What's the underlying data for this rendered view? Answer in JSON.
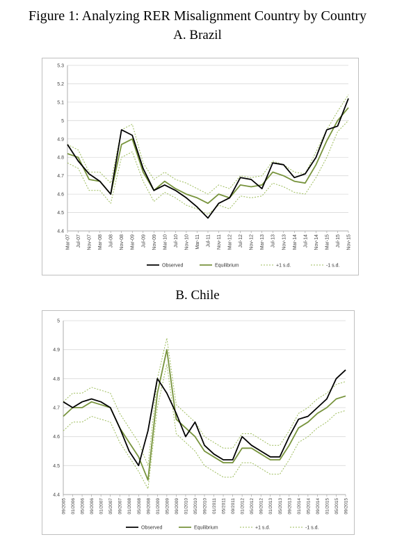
{
  "figure_title": "Figure 1: Analyzing RER Misalignment Country by Country",
  "chart_data": [
    {
      "type": "line",
      "title": "A. Brazil",
      "xlabel": "",
      "ylabel": "",
      "ylim": [
        4.4,
        5.3
      ],
      "yticks": [
        "4.4",
        "4.5",
        "4.6",
        "4.7",
        "4.8",
        "4.9",
        "5",
        "5.1",
        "5.2",
        "5.3"
      ],
      "grid": "horizontal",
      "legend_position": "bottom",
      "x": [
        "Mar-07",
        "Jul-07",
        "Nov-07",
        "Mar-08",
        "Jul-08",
        "Nov-08",
        "Mar-09",
        "Jul-09",
        "Nov-09",
        "Mar-10",
        "Jul-10",
        "Nov-10",
        "Mar-11",
        "Jul-11",
        "Nov-11",
        "Mar-12",
        "Jul-12",
        "Nov-12",
        "Mar-13",
        "Jul-13",
        "Nov-13",
        "Mar-14",
        "Jul-14",
        "Nov-14",
        "Mar-15",
        "Jul-15",
        "Nov-15"
      ],
      "series": [
        {
          "name": "Observed",
          "color": "#000000",
          "width": 1.8,
          "dash": "",
          "values": [
            4.87,
            4.78,
            4.71,
            4.67,
            4.6,
            4.95,
            4.92,
            4.74,
            4.62,
            4.65,
            4.62,
            4.58,
            4.53,
            4.47,
            4.55,
            4.58,
            4.69,
            4.68,
            4.63,
            4.77,
            4.76,
            4.69,
            4.71,
            4.8,
            4.95,
            4.97,
            5.12
          ]
        },
        {
          "name": "Equilibrium",
          "color": "#77933c",
          "width": 1.8,
          "dash": "",
          "values": [
            4.82,
            4.8,
            4.68,
            4.67,
            4.6,
            4.87,
            4.9,
            4.72,
            4.62,
            4.67,
            4.63,
            4.6,
            4.58,
            4.55,
            4.6,
            4.58,
            4.65,
            4.64,
            4.65,
            4.72,
            4.7,
            4.67,
            4.66,
            4.76,
            4.89,
            5.0,
            5.07
          ]
        },
        {
          "name": "+1 s.d.",
          "color": "#9bbb59",
          "width": 1,
          "dash": "2,2",
          "values": [
            4.87,
            4.84,
            4.72,
            4.72,
            4.66,
            4.95,
            4.98,
            4.77,
            4.68,
            4.72,
            4.68,
            4.66,
            4.63,
            4.6,
            4.65,
            4.63,
            4.7,
            4.69,
            4.7,
            4.78,
            4.76,
            4.72,
            4.71,
            4.83,
            4.95,
            5.05,
            5.14
          ]
        },
        {
          "name": "-1 s.d.",
          "color": "#9bbb59",
          "width": 1,
          "dash": "2,2",
          "values": [
            4.77,
            4.74,
            4.62,
            4.62,
            4.55,
            4.8,
            4.83,
            4.67,
            4.56,
            4.61,
            4.58,
            4.54,
            4.52,
            4.49,
            4.54,
            4.52,
            4.59,
            4.58,
            4.59,
            4.66,
            4.64,
            4.61,
            4.6,
            4.69,
            4.8,
            4.94,
            5.0
          ]
        }
      ]
    },
    {
      "type": "line",
      "title": "B. Chile",
      "xlabel": "",
      "ylabel": "",
      "ylim": [
        4.4,
        5.0
      ],
      "yticks": [
        "4.4",
        "4.5",
        "4.6",
        "4.7",
        "4.8",
        "4.9",
        "5"
      ],
      "grid": "horizontal",
      "legend_position": "bottom",
      "x": [
        "09/2005",
        "01/2006",
        "05/2006",
        "09/2006",
        "01/2007",
        "05/2007",
        "09/2007",
        "01/2008",
        "05/2008",
        "09/2008",
        "01/2009",
        "05/2009",
        "09/2009",
        "01/2010",
        "05/2010",
        "09/2010",
        "01/2011",
        "05/2011",
        "09/2011",
        "01/2012",
        "05/2012",
        "09/2012",
        "01/2013",
        "05/2013",
        "09/2013",
        "01/2014",
        "05/2014",
        "09/2014",
        "01/2015",
        "05/2015",
        "09/2015"
      ],
      "series": [
        {
          "name": "Observed",
          "color": "#000000",
          "width": 1.8,
          "dash": "",
          "values": [
            4.72,
            4.7,
            4.72,
            4.73,
            4.72,
            4.7,
            4.63,
            4.55,
            4.5,
            4.62,
            4.8,
            4.75,
            4.68,
            4.6,
            4.65,
            4.57,
            4.54,
            4.52,
            4.52,
            4.6,
            4.57,
            4.55,
            4.53,
            4.53,
            4.6,
            4.66,
            4.67,
            4.7,
            4.73,
            4.8,
            4.83
          ]
        },
        {
          "name": "Equilibrium",
          "color": "#77933c",
          "width": 1.8,
          "dash": "",
          "values": [
            4.67,
            4.7,
            4.7,
            4.72,
            4.71,
            4.7,
            4.63,
            4.58,
            4.53,
            4.45,
            4.75,
            4.9,
            4.66,
            4.63,
            4.6,
            4.55,
            4.53,
            4.51,
            4.51,
            4.56,
            4.56,
            4.54,
            4.52,
            4.52,
            4.57,
            4.63,
            4.65,
            4.68,
            4.7,
            4.73,
            4.74
          ]
        },
        {
          "name": "+1 s.d.",
          "color": "#9bbb59",
          "width": 1,
          "dash": "2,2",
          "values": [
            4.72,
            4.75,
            4.75,
            4.77,
            4.76,
            4.75,
            4.68,
            4.63,
            4.58,
            4.5,
            4.8,
            4.94,
            4.71,
            4.68,
            4.65,
            4.6,
            4.58,
            4.56,
            4.56,
            4.61,
            4.61,
            4.59,
            4.57,
            4.57,
            4.62,
            4.68,
            4.7,
            4.73,
            4.75,
            4.78,
            4.79
          ]
        },
        {
          "name": "-1 s.d.",
          "color": "#9bbb59",
          "width": 1,
          "dash": "2,2",
          "values": [
            4.62,
            4.65,
            4.65,
            4.67,
            4.66,
            4.65,
            4.58,
            4.53,
            4.48,
            4.42,
            4.7,
            4.85,
            4.61,
            4.58,
            4.55,
            4.5,
            4.48,
            4.46,
            4.46,
            4.51,
            4.51,
            4.49,
            4.47,
            4.47,
            4.52,
            4.58,
            4.6,
            4.63,
            4.65,
            4.68,
            4.69
          ]
        }
      ]
    }
  ]
}
